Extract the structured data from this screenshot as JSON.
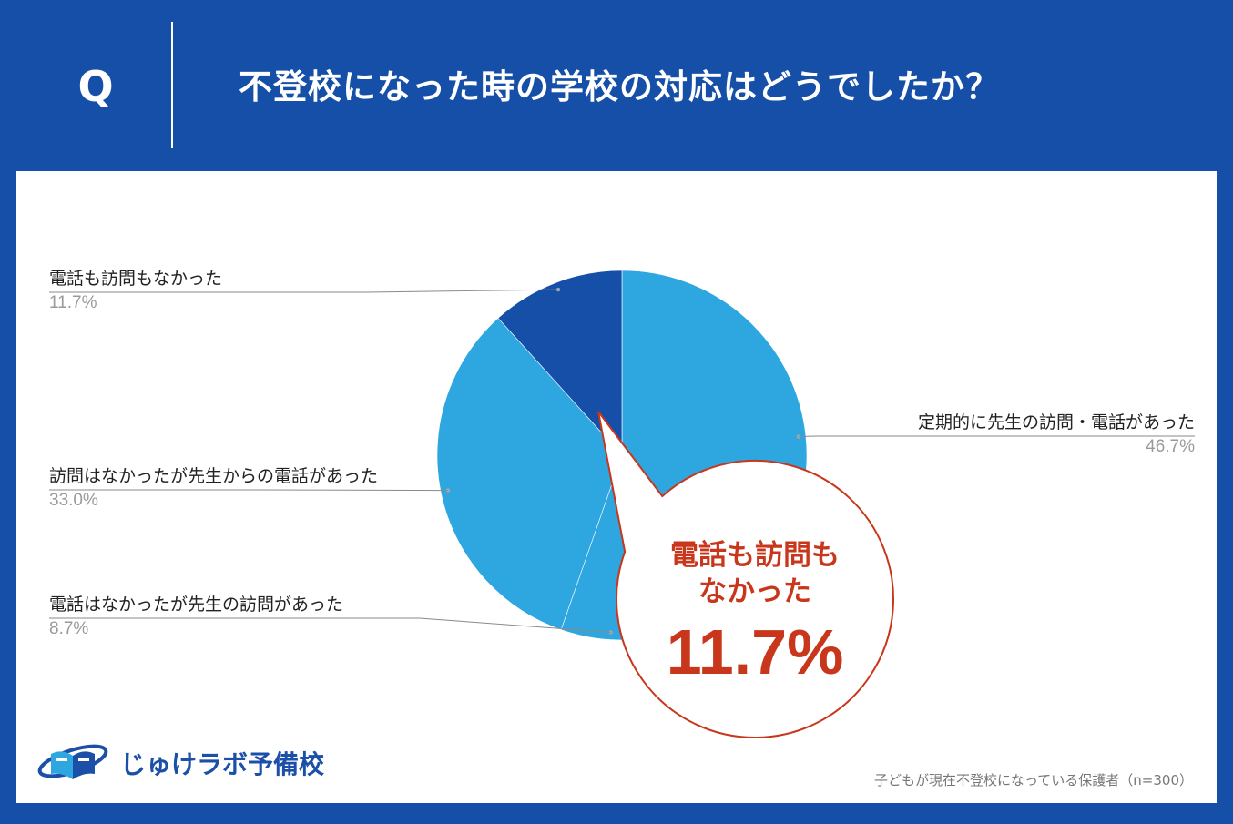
{
  "header": {
    "q_mark": "Q",
    "question": "不登校になった時の学校の対応はどうでしたか？"
  },
  "chart_data": {
    "type": "pie",
    "categories": [
      "定期的に先生の訪問・電話があった",
      "電話はなかったが先生の訪問があった",
      "訪問はなかったが先生からの電話があった",
      "電話も訪問もなかった"
    ],
    "values": [
      46.7,
      8.7,
      33.0,
      11.7
    ],
    "value_labels": [
      "46.7%",
      "8.7%",
      "33.0%",
      "11.7%"
    ],
    "colors": [
      "#2ea6e0",
      "#2ea6e0",
      "#2ea6e0",
      "#164fa8"
    ],
    "start_angle_deg": 0,
    "direction": "clockwise"
  },
  "callout": {
    "line1": "電話も訪問も",
    "line2": "なかった",
    "value": "11.7%"
  },
  "logo": {
    "text": "じゅけラボ予備校"
  },
  "footnote": "子どもが現在不登校になっている保護者（n=300）",
  "colors": {
    "background": "#164fa8",
    "slice_light": "#2ea6e0",
    "slice_dark": "#164fa8",
    "callout_accent": "#c8361b"
  }
}
